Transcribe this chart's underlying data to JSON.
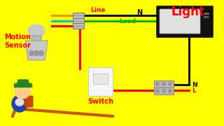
{
  "bg_color": "#FFFF00",
  "title_text": "Light",
  "title_color": "#FF0000",
  "motion_sensor_label": "Motion\nSensor",
  "motion_sensor_color": "#FF0000",
  "switch_label": "Switch",
  "switch_color": "#FF0000",
  "line_label": "Line",
  "line_label_color": "#FF0000",
  "load_label": "Load",
  "load_label_color": "#00BB00",
  "N_label_top": "N",
  "N_label_bot": "N",
  "L_label_bot": "L",
  "wire_black": "#111111",
  "wire_red": "#FF0000",
  "wire_green": "#00BB00",
  "wire_orange": "#FF8C00",
  "wire_cyan": "#00CCCC",
  "conn_color": "#BBBBBB",
  "sensor_color": "#BBBBBB",
  "switch_face": "#F5F5F5",
  "light_body": "#111111",
  "light_lens": "#E0E0E0",
  "term_color": "#BBBBBB"
}
